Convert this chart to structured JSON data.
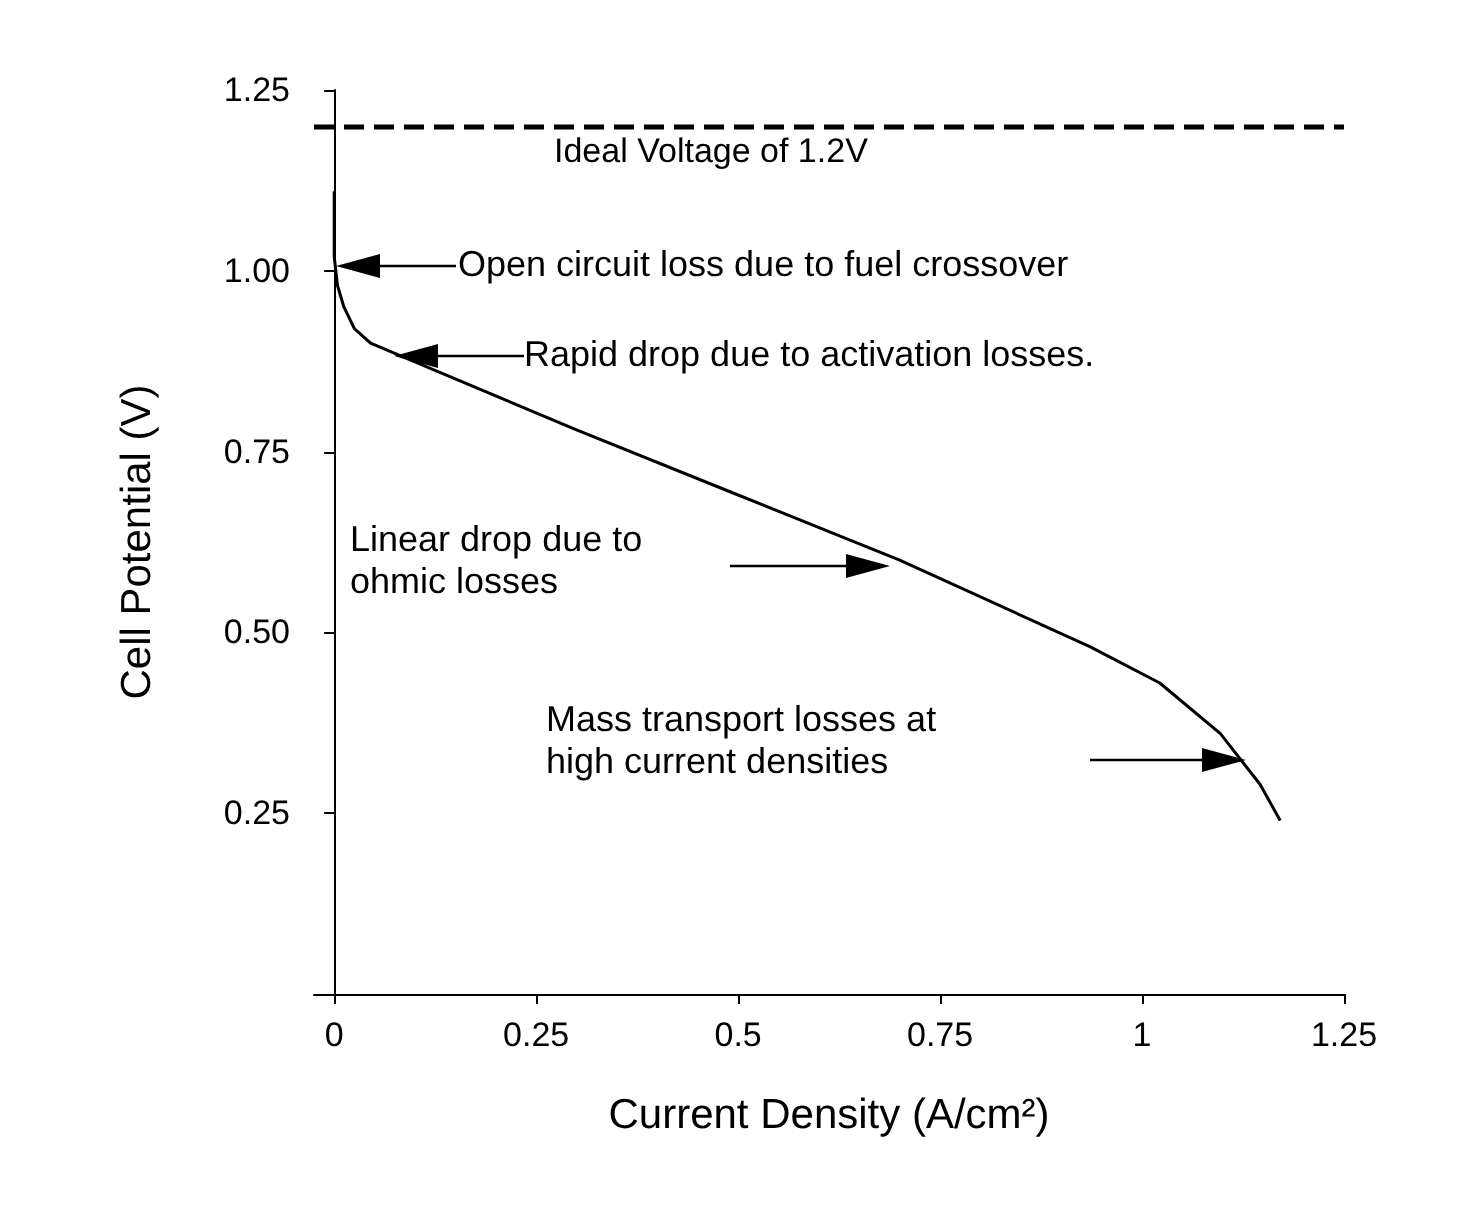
{
  "chart_data": {
    "type": "line",
    "xlabel": "Current Density (A/cm²)",
    "ylabel": "Cell Potential (V)",
    "x": [
      0,
      0,
      0.004,
      0.012,
      0.025,
      0.045,
      0.13,
      0.3,
      0.5,
      0.7,
      0.936,
      1.022,
      1.097,
      1.146,
      1.171
    ],
    "series": [
      {
        "color": "#000000",
        "values": [
          1.11,
          1.02,
          0.98,
          0.95,
          0.92,
          0.9,
          0.86,
          0.78,
          0.69,
          0.6,
          0.48,
          0.43,
          0.36,
          0.29,
          0.24
        ]
      }
    ],
    "xlim": [
      -0.025,
      1.25
    ],
    "ylim": [
      0,
      1.25
    ],
    "xticks": [
      0,
      0.25,
      0.5,
      0.75,
      1,
      {
        "value": 1.25,
        "label": "1.25"
      }
    ],
    "yticks": [
      {
        "value": 0.25,
        "label": "0.25"
      },
      {
        "value": 0.5,
        "label": "0.50"
      },
      {
        "value": 0.75,
        "label": "0.75"
      },
      {
        "value": 1,
        "label": "1.00"
      },
      {
        "value": 1.25,
        "label": "1.25"
      }
    ],
    "ref_lines": [
      {
        "axis": "y",
        "value": 1.2,
        "label": "Ideal Voltage of 1.2V",
        "color": "#000000",
        "line_style": "dashed"
      }
    ],
    "annotations": [
      "Open circuit loss due to fuel crossover",
      "Rapid drop due to activation losses.",
      "Linear drop due to\nohmic losses",
      "Mass transport losses at\nhigh current densities"
    ],
    "grid": false,
    "marker": "none",
    "line_style": "solid"
  }
}
